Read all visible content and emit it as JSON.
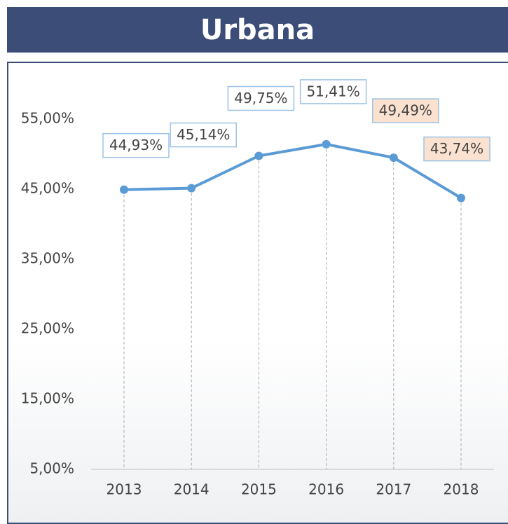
{
  "chart_data": {
    "type": "line",
    "title": "Urbana",
    "categories": [
      "2013",
      "2014",
      "2015",
      "2016",
      "2017",
      "2018"
    ],
    "series": [
      {
        "name": "Urbana",
        "color": "#5b9bd5",
        "values": [
          44.93,
          45.14,
          49.75,
          51.41,
          49.49,
          43.74
        ],
        "value_labels": [
          "44,93%",
          "45,14%",
          "49,75%",
          "51,41%",
          "49,49%",
          "43,74%"
        ]
      }
    ],
    "ylim": [
      5,
      55
    ],
    "yticks": [
      {
        "value": 5,
        "label": "5,00%"
      },
      {
        "value": 15,
        "label": "15,00%"
      },
      {
        "value": 25,
        "label": "25,00%"
      },
      {
        "value": 35,
        "label": "35,00%"
      },
      {
        "value": 45,
        "label": "45,00%"
      },
      {
        "value": 55,
        "label": "55,00%"
      }
    ]
  }
}
